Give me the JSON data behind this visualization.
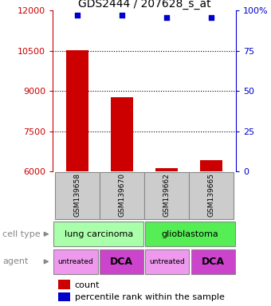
{
  "title": "GDS2444 / 207628_s_at",
  "samples": [
    "GSM139658",
    "GSM139670",
    "GSM139662",
    "GSM139665"
  ],
  "counts": [
    10520,
    8760,
    6130,
    6430
  ],
  "percentile_ranks": [
    97,
    97,
    96,
    96
  ],
  "ylim_left": [
    6000,
    12000
  ],
  "yticks_left": [
    6000,
    7500,
    9000,
    10500,
    12000
  ],
  "yticks_right": [
    0,
    25,
    50,
    75,
    100
  ],
  "ylim_right": [
    0,
    100
  ],
  "bar_color": "#cc0000",
  "dot_color": "#0000cc",
  "cell_types": [
    "lung carcinoma",
    "glioblastoma"
  ],
  "cell_type_spans": [
    2,
    2
  ],
  "cell_type_colors": [
    "#aaffaa",
    "#55ee55"
  ],
  "agents": [
    "untreated",
    "DCA",
    "untreated",
    "DCA"
  ],
  "agent_colors_light": "#ee99ee",
  "agent_colors_dark": "#cc44cc",
  "left_axis_color": "#cc0000",
  "right_axis_color": "#0000cc",
  "sample_bg": "#cccccc",
  "legend_square_size": 8
}
